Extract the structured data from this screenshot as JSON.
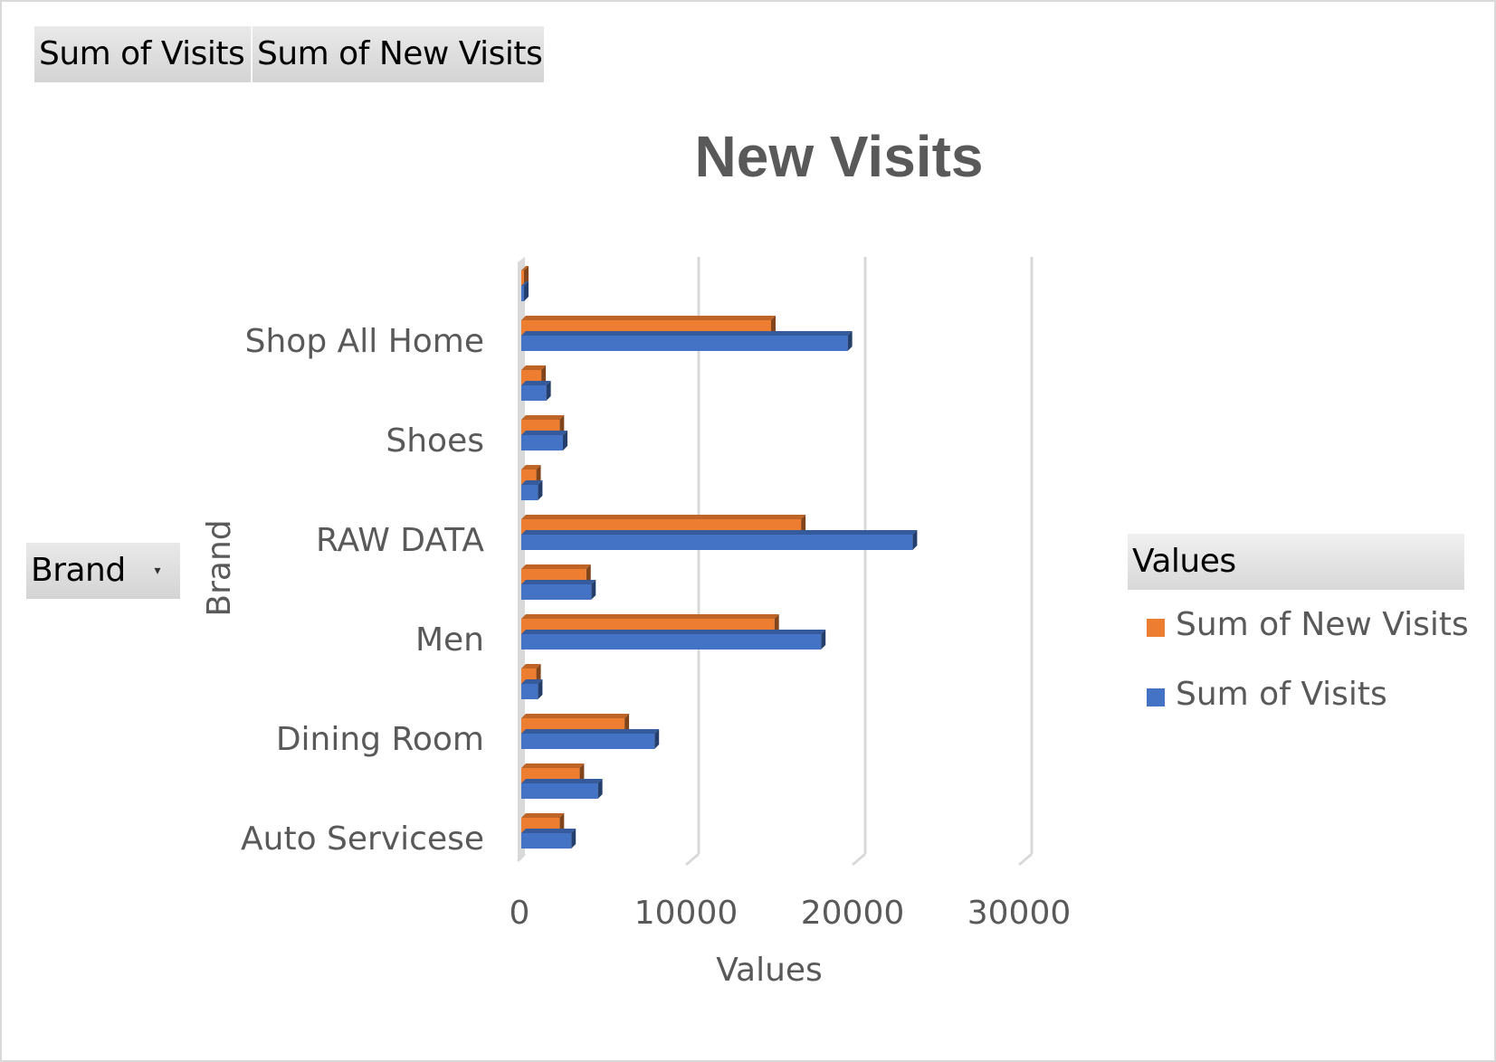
{
  "field_buttons": {
    "sum_of_visits": "Sum of Visits",
    "sum_of_new_visits": "Sum of New Visits",
    "brand": "Brand"
  },
  "legend_header": "Values",
  "colors": {
    "new_visits": "#ED7D31",
    "visits": "#4472C4",
    "grid": "#d9d9d9",
    "text": "#595959"
  },
  "chart_data": {
    "type": "bar",
    "orientation": "horizontal",
    "style": "3d-clustered",
    "title": "New Visits",
    "xlabel": "Values",
    "ylabel": "Brand",
    "xlim": [
      0,
      30000
    ],
    "xticks": [
      "0",
      "10000",
      "20000",
      "30000"
    ],
    "legend_position": "right",
    "categories": [
      "Auto Servicese",
      "",
      "Dining Room",
      "",
      "Men",
      "",
      "RAW DATA",
      "",
      "Shoes",
      "",
      "Shop All Home",
      ""
    ],
    "series": [
      {
        "name": "Sum of Visits",
        "color": "#4472C4",
        "values": [
          3000,
          4600,
          8000,
          1000,
          18000,
          4200,
          23500,
          1000,
          2500,
          1500,
          19600,
          100
        ]
      },
      {
        "name": "Sum of New Visits",
        "color": "#ED7D31",
        "values": [
          2300,
          3500,
          6200,
          900,
          15200,
          3900,
          16800,
          900,
          2300,
          1200,
          15000,
          100
        ]
      }
    ]
  }
}
